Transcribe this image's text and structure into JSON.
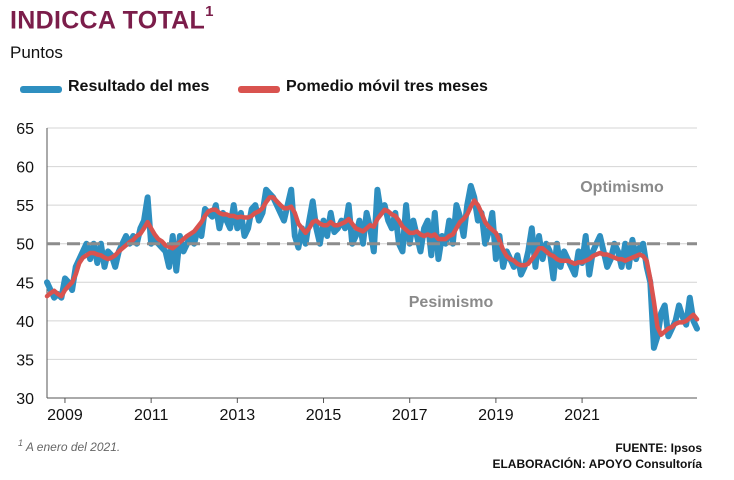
{
  "title": "INDICCA TOTAL",
  "title_note": "1",
  "subtitle": "Puntos",
  "legend": [
    {
      "label": "Resultado del mes",
      "color": "#2e8fc0"
    },
    {
      "label": "Pomedio móvil tres meses",
      "color": "#d9534f"
    }
  ],
  "annotations": {
    "optimism": "Optimismo",
    "pessimism": "Pesimismo"
  },
  "footnote": {
    "mark": "1",
    "text": " A enero del 2021."
  },
  "source": {
    "line1": "FUENTE: Ipsos",
    "line2": "ELABORACIÓN: APOYO Consultoría"
  },
  "chart_data": {
    "type": "line",
    "x_start": "2008-08",
    "x_ticks": [
      "2009",
      "2011",
      "2013",
      "2015",
      "2017",
      "2019",
      "2021"
    ],
    "x_tick_years": [
      2009,
      2011,
      2013,
      2015,
      2017,
      2019,
      2021
    ],
    "y_ticks": [
      30,
      35,
      40,
      45,
      50,
      55,
      60,
      65
    ],
    "ylim": [
      30,
      65
    ],
    "reference_line": 50,
    "grid": true,
    "series": [
      {
        "name": "Resultado del mes",
        "color": "#2e8fc0",
        "values": [
          45,
          44,
          43,
          43.5,
          43,
          45.5,
          45,
          44,
          47,
          48,
          49,
          50,
          48,
          50,
          47.5,
          50,
          47,
          49,
          48.5,
          47,
          49,
          50,
          51,
          50,
          51,
          50,
          52,
          53,
          56,
          50,
          51,
          50,
          49.5,
          49,
          47,
          51,
          46.5,
          51,
          49,
          50,
          51,
          50,
          52,
          51,
          54.5,
          54,
          53.5,
          55,
          52,
          54,
          53,
          52,
          55,
          52,
          54,
          51,
          52,
          54.5,
          55,
          53,
          54,
          57,
          56.5,
          56,
          55,
          54,
          53,
          55,
          57,
          51,
          49.5,
          52,
          50,
          53,
          55.5,
          52,
          50,
          53,
          51,
          54,
          51.5,
          52,
          53,
          52,
          55,
          50,
          51,
          53,
          50,
          54,
          52,
          49,
          57,
          54,
          55,
          53,
          52,
          54,
          50,
          49,
          55,
          50,
          53,
          51,
          49,
          52,
          53,
          48.5,
          54,
          48,
          51,
          50,
          53,
          50,
          55,
          53.5,
          51,
          55,
          57.5,
          56,
          53,
          54,
          50,
          51.5,
          54,
          48,
          51,
          47,
          49,
          48,
          47,
          48.5,
          46,
          47,
          49,
          52,
          47,
          51,
          48,
          50,
          49,
          45.5,
          50,
          47,
          49,
          48,
          47,
          46,
          49,
          47.5,
          51,
          46,
          49,
          50,
          51,
          49,
          47,
          48,
          50,
          49,
          47,
          50,
          47,
          50.5,
          48,
          49.5,
          50,
          47,
          45,
          36.5,
          38,
          41,
          42,
          38,
          39,
          40,
          42,
          40.5,
          39.5,
          43,
          40,
          39
        ]
      },
      {
        "name": "Pomedio móvil tres meses",
        "color": "#d9534f",
        "values": [
          43.2,
          43.6,
          43.9,
          43.5,
          43.2,
          44,
          44.5,
          45,
          46,
          47.5,
          48.2,
          48.5,
          48.8,
          48.8,
          48.6,
          48.5,
          48.2,
          48,
          48.2,
          48.5,
          49,
          49.4,
          49.8,
          50.2,
          50.5,
          51,
          51.3,
          52,
          52.8,
          52,
          51.2,
          50.6,
          50.3,
          49.8,
          49.6,
          49.4,
          49.8,
          50.2,
          50.6,
          51,
          51.3,
          51.6,
          52.2,
          52.8,
          53.6,
          54.2,
          54.4,
          54.4,
          54,
          53.8,
          53.8,
          53.6,
          53.6,
          53.4,
          53.5,
          53.4,
          53.4,
          53.6,
          54,
          54.2,
          54.6,
          55.4,
          56,
          56,
          55.5,
          55,
          54.6,
          54.6,
          54.8,
          54,
          52.6,
          52,
          51.4,
          52,
          52.8,
          53,
          52.6,
          52.4,
          52.4,
          52.8,
          52.4,
          52.4,
          52.6,
          52.8,
          53.2,
          52.6,
          52,
          51.8,
          51.6,
          52,
          52.4,
          52.2,
          53.2,
          53.8,
          54.4,
          54.2,
          53.8,
          53.6,
          53,
          52.2,
          51.8,
          51.4,
          51.4,
          51.6,
          51.2,
          51,
          51.2,
          51,
          51.2,
          50.6,
          50.6,
          50.6,
          51,
          51.2,
          52,
          52.8,
          53.2,
          53.8,
          54.8,
          55.6,
          55,
          54,
          52.8,
          52.2,
          51.8,
          51.4,
          50.4,
          49.2,
          48.4,
          48,
          47.8,
          47.4,
          47.2,
          47.2,
          47.4,
          48,
          48.6,
          49.4,
          49.4,
          49,
          48.6,
          48.4,
          48,
          47.8,
          47.8,
          47.8,
          47.6,
          47.4,
          47.6,
          47.6,
          47.8,
          48,
          48.4,
          48.6,
          48.8,
          48.6,
          48.6,
          48.4,
          48.2,
          48,
          48,
          47.8,
          48,
          48.2,
          48.4,
          48.6,
          48.4,
          47.8,
          45.4,
          42.5,
          39.2,
          38.2,
          38.6,
          39,
          39.2,
          39.6,
          39.8,
          39.8,
          40,
          40.4,
          40.8,
          40.2
        ]
      }
    ]
  }
}
